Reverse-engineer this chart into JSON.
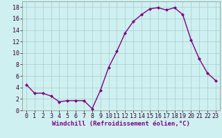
{
  "x": [
    0,
    1,
    2,
    3,
    4,
    5,
    6,
    7,
    8,
    9,
    10,
    11,
    12,
    13,
    14,
    15,
    16,
    17,
    18,
    19,
    20,
    21,
    22,
    23
  ],
  "y": [
    4.5,
    3.0,
    3.0,
    2.5,
    1.5,
    1.7,
    1.7,
    1.7,
    0.3,
    3.5,
    7.5,
    10.3,
    13.5,
    15.5,
    16.7,
    17.7,
    17.9,
    17.5,
    17.9,
    16.7,
    12.3,
    9.0,
    6.5,
    5.2
  ],
  "line_color": "#7B0080",
  "marker": "D",
  "marker_size": 2.2,
  "bg_color": "#cff0f0",
  "grid_color": "#aacccc",
  "xlabel": "Windchill (Refroidissement éolien,°C)",
  "xlim": [
    -0.5,
    23.5
  ],
  "ylim": [
    0,
    19
  ],
  "yticks": [
    0,
    2,
    4,
    6,
    8,
    10,
    12,
    14,
    16,
    18
  ],
  "xticks": [
    0,
    1,
    2,
    3,
    4,
    5,
    6,
    7,
    8,
    9,
    10,
    11,
    12,
    13,
    14,
    15,
    16,
    17,
    18,
    19,
    20,
    21,
    22,
    23
  ],
  "xlabel_fontsize": 6.5,
  "tick_fontsize": 6,
  "line_width": 1.0
}
